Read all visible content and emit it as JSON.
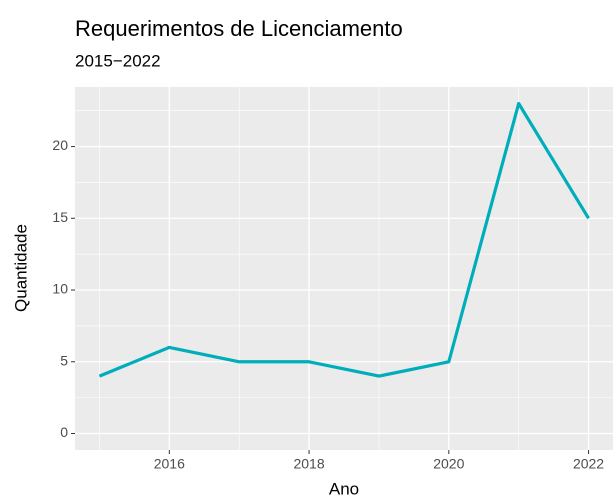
{
  "chart_data": {
    "type": "line",
    "title": "Requerimentos de Licenciamento",
    "subtitle": "2015−2022",
    "x_label": "Ano",
    "y_label": "Quantidade",
    "x": [
      2015,
      2016,
      2017,
      2018,
      2019,
      2020,
      2021,
      2022
    ],
    "series": [
      {
        "name": "Quantidade",
        "color": "#00adbb",
        "values": [
          4,
          6,
          5,
          5,
          4,
          5,
          23,
          15
        ]
      }
    ],
    "xlim": [
      2014.65,
      2022.35
    ],
    "xticks": [
      2016,
      2018,
      2020,
      2022
    ],
    "xminorticks": [
      2015,
      2017,
      2019,
      2021
    ],
    "ylim": [
      -1.15,
      24.15
    ],
    "yticks": [
      0,
      5,
      10,
      15,
      20
    ],
    "yminorticks": [
      2.5,
      7.5,
      12.5,
      17.5,
      22.5
    ],
    "grid": true
  }
}
